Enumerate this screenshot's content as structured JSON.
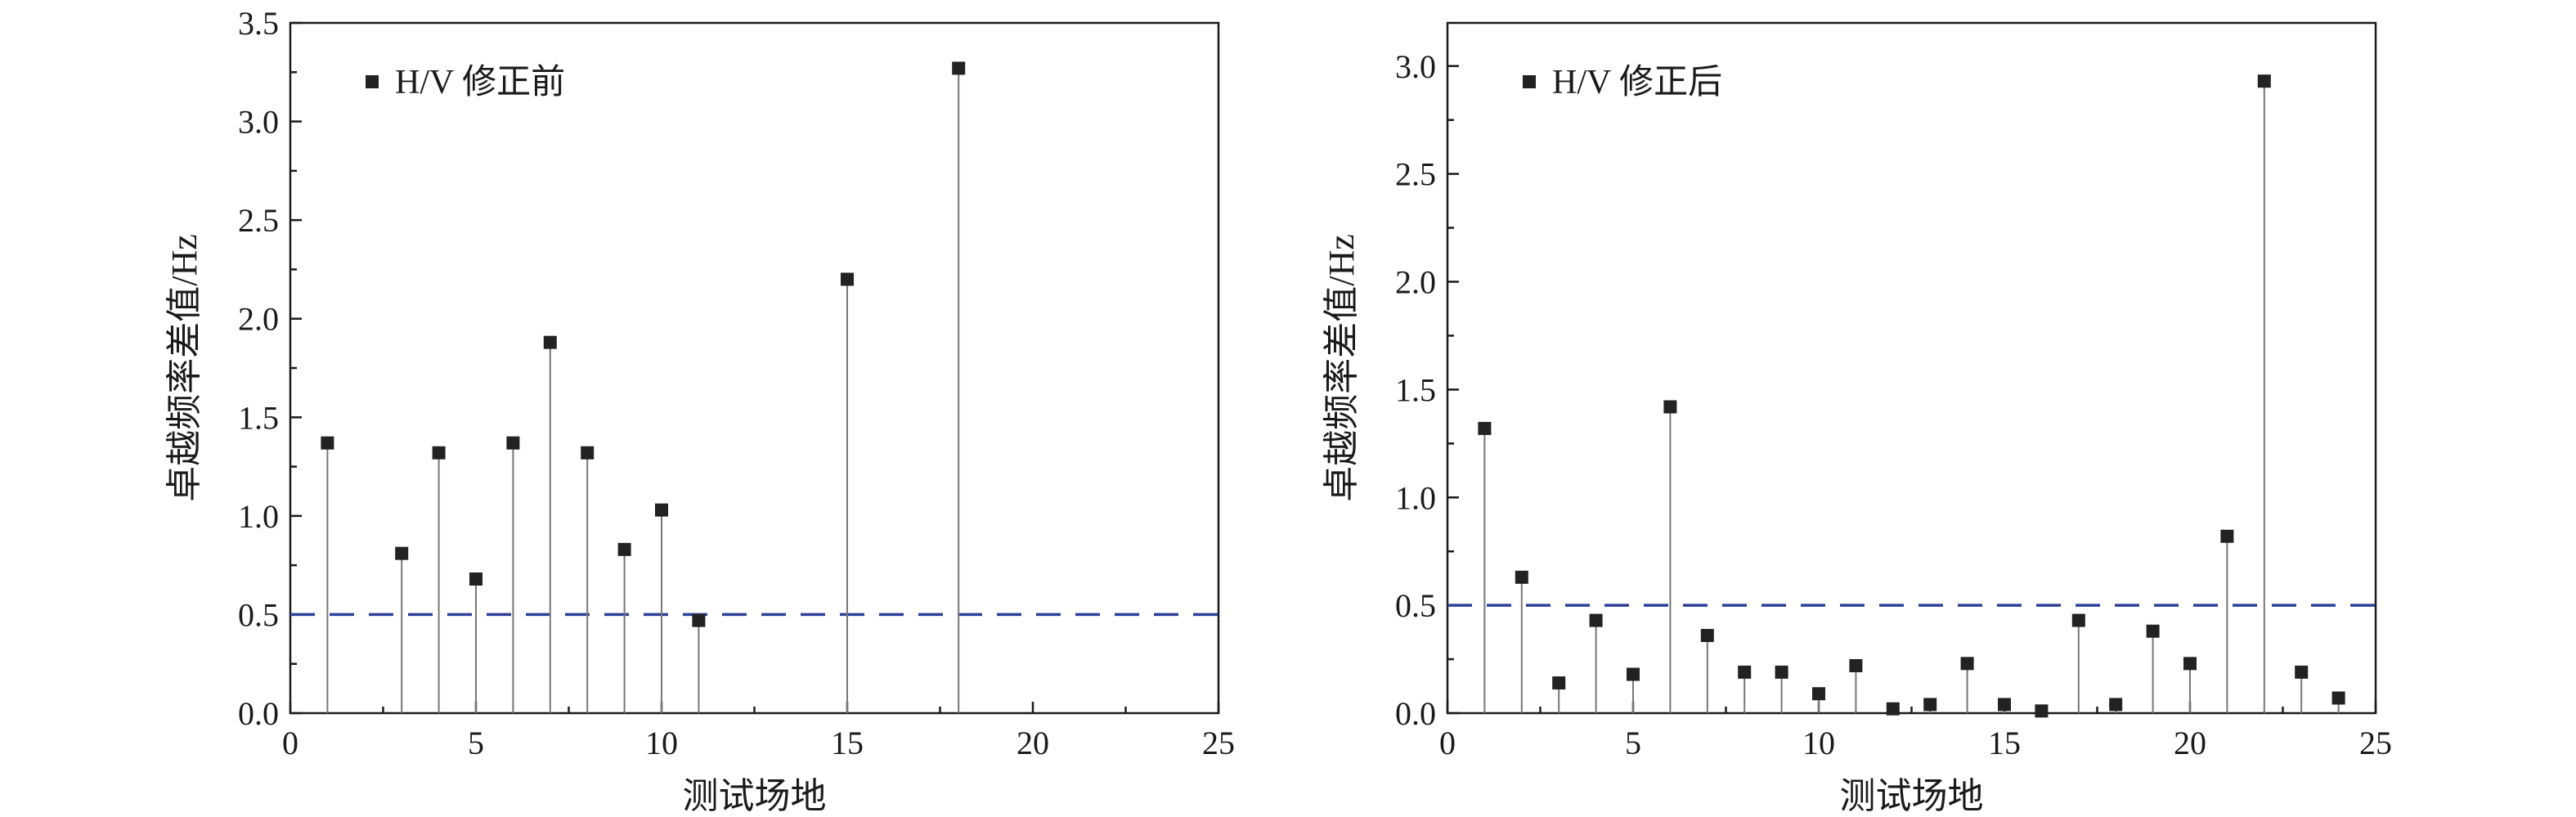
{
  "colors": {
    "marker": "#222222",
    "stem": "#777777",
    "threshold": "#2e3f99",
    "axis": "#1a1a1a"
  },
  "chart_data": [
    {
      "type": "scatter",
      "title": "",
      "xlabel": "测试场地",
      "ylabel": "卓越频率差值/Hz",
      "xlim": [
        0,
        25
      ],
      "ylim": [
        0,
        3.5
      ],
      "xticks": [
        0,
        5,
        10,
        15,
        20,
        25
      ],
      "yticks": [
        0.0,
        0.5,
        1.0,
        1.5,
        2.0,
        2.5,
        3.0,
        3.5
      ],
      "ytick_labels": [
        "0.0",
        "0.5",
        "1.0",
        "1.5",
        "2.0",
        "2.5",
        "3.0",
        "3.5"
      ],
      "legend_position": "top-left",
      "grid": false,
      "threshold": 0.5,
      "series": [
        {
          "name": "H/V 修正前",
          "marker": "square",
          "stems": true,
          "x": [
            1,
            3,
            4,
            5,
            6,
            7,
            8,
            9,
            10,
            11,
            15,
            18
          ],
          "y": [
            1.37,
            0.81,
            1.32,
            0.68,
            1.37,
            1.88,
            1.32,
            0.83,
            1.03,
            0.47,
            2.2,
            3.27
          ]
        }
      ]
    },
    {
      "type": "scatter",
      "title": "",
      "xlabel": "测试场地",
      "ylabel": "卓越频率差值/Hz",
      "xlim": [
        0,
        25
      ],
      "ylim": [
        0,
        3.2
      ],
      "xticks": [
        0,
        5,
        10,
        15,
        20,
        25
      ],
      "yticks": [
        0.0,
        0.5,
        1.0,
        1.5,
        2.0,
        2.5,
        3.0
      ],
      "ytick_labels": [
        "0.0",
        "0.5",
        "1.0",
        "1.5",
        "2.0",
        "2.5",
        "3.0"
      ],
      "legend_position": "top-left",
      "grid": false,
      "threshold": 0.5,
      "series": [
        {
          "name": "H/V 修正后",
          "marker": "square",
          "stems": true,
          "x": [
            1,
            2,
            3,
            4,
            5,
            6,
            7,
            8,
            9,
            10,
            11,
            12,
            13,
            14,
            15,
            16,
            17,
            18,
            19,
            20,
            21,
            22,
            23,
            24
          ],
          "y": [
            1.32,
            0.63,
            0.14,
            0.43,
            0.18,
            1.42,
            0.36,
            0.19,
            0.19,
            0.09,
            0.22,
            0.02,
            0.04,
            0.23,
            0.04,
            0.01,
            0.43,
            0.04,
            0.38,
            0.23,
            0.82,
            2.93,
            0.19,
            0.07
          ]
        }
      ]
    }
  ]
}
